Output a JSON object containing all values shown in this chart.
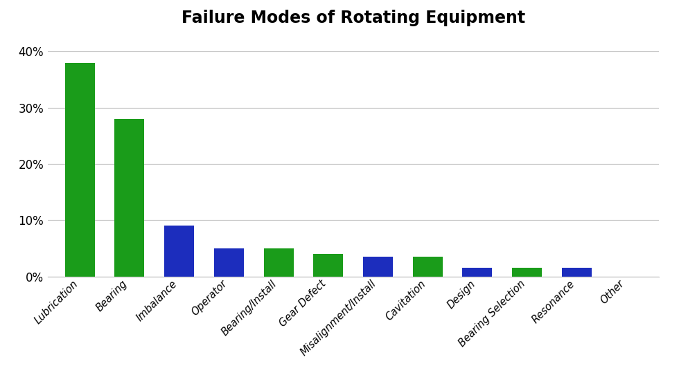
{
  "categories": [
    "Lubrication",
    "Bearing",
    "Imbalance",
    "Operator",
    "Bearing/Install",
    "Gear Defect",
    "Misalignment/Install",
    "Cavitation",
    "Design",
    "Bearing Selection",
    "Resonance",
    "Other"
  ],
  "values": [
    0.38,
    0.28,
    0.09,
    0.05,
    0.05,
    0.04,
    0.035,
    0.035,
    0.015,
    0.015,
    0.015,
    0.0
  ],
  "bar_colors": [
    "#1a9c1a",
    "#1a9c1a",
    "#1c2dbd",
    "#1c2dbd",
    "#1a9c1a",
    "#1a9c1a",
    "#1c2dbd",
    "#1a9c1a",
    "#1c2dbd",
    "#1a9c1a",
    "#1c2dbd",
    "#1c2dbd"
  ],
  "title": "Failure Modes of Rotating Equipment",
  "title_fontsize": 17,
  "title_fontweight": "bold",
  "ylim": [
    0,
    0.43
  ],
  "yticks": [
    0.0,
    0.1,
    0.2,
    0.3,
    0.4
  ],
  "background_color": "#ffffff",
  "grid_color": "#c8c8c8",
  "bar_width": 0.6,
  "figwidth": 9.8,
  "figheight": 5.55,
  "dpi": 100
}
